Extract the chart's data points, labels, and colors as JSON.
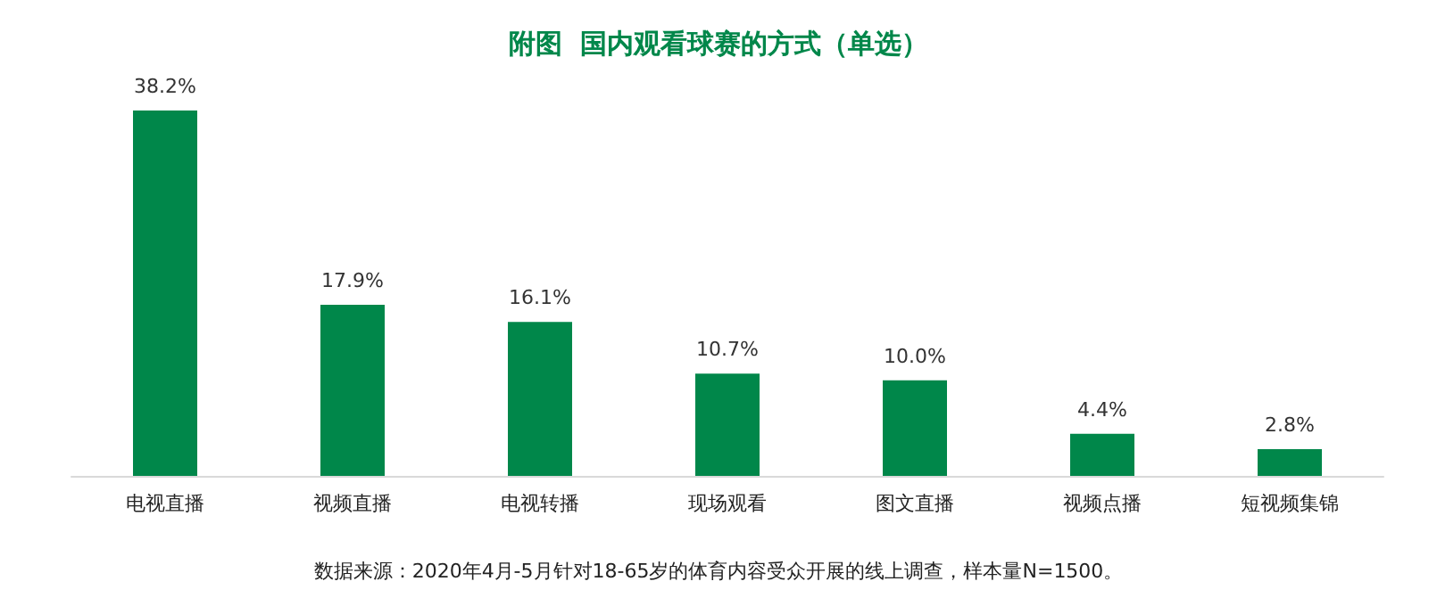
{
  "chart_data": {
    "type": "bar",
    "title": "附图  国内观看球赛的方式（单选）",
    "categories": [
      "电视直播",
      "视频直播",
      "电视转播",
      "现场观看",
      "图文直播",
      "视频点播",
      "短视频集锦"
    ],
    "values": [
      38.2,
      17.9,
      16.1,
      10.7,
      10.0,
      4.4,
      2.8
    ],
    "value_labels": [
      "38.2%",
      "17.9%",
      "16.1%",
      "10.7%",
      "10.0%",
      "4.4%",
      "2.8%"
    ],
    "color": "#00874a",
    "annotations": [
      "数据来源：2020年4月-5月针对18-65岁的体育内容受众开展的线上调查，样本量N=1500。"
    ]
  }
}
